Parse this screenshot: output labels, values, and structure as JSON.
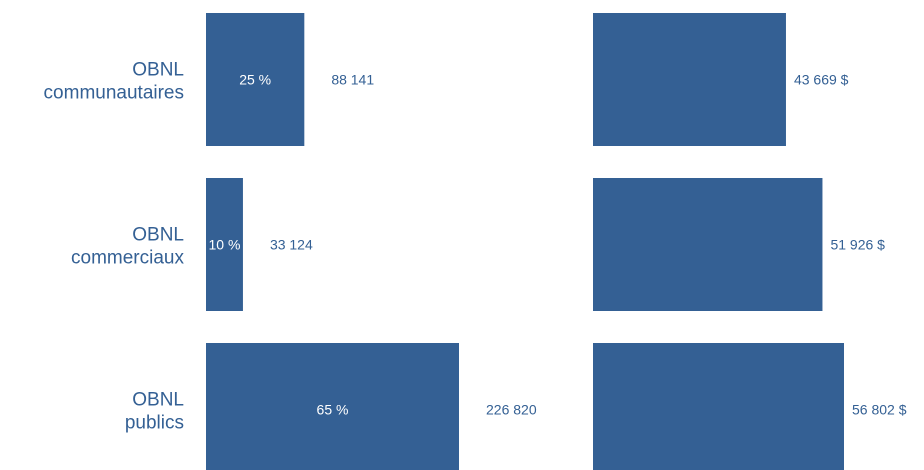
{
  "chart_data": [
    {
      "type": "bar",
      "orientation": "horizontal",
      "categories": [
        [
          "OBNL",
          "communautaires"
        ],
        [
          "OBNL",
          "commerciaux"
        ],
        [
          "OBNL",
          "publics"
        ]
      ],
      "values": [
        88141,
        33124,
        226820
      ],
      "value_labels": [
        "88 141",
        "33 124",
        "226 820"
      ],
      "share_labels": [
        "25 %",
        "10 %",
        "65 %"
      ],
      "share_values": [
        25,
        10,
        65
      ],
      "xlim": [
        0,
        226820
      ],
      "grid": false,
      "legend": false,
      "color": "#346094"
    },
    {
      "type": "bar",
      "orientation": "horizontal",
      "categories": [
        [
          "OBNL",
          "communautaires"
        ],
        [
          "OBNL",
          "commerciaux"
        ],
        [
          "OBNL",
          "publics"
        ]
      ],
      "values": [
        43669,
        51926,
        56802
      ],
      "value_labels": [
        "43 669 $",
        "51 926 $",
        "56 802 $"
      ],
      "xlim": [
        0,
        56802
      ],
      "grid": false,
      "legend": false,
      "color": "#346094"
    }
  ]
}
